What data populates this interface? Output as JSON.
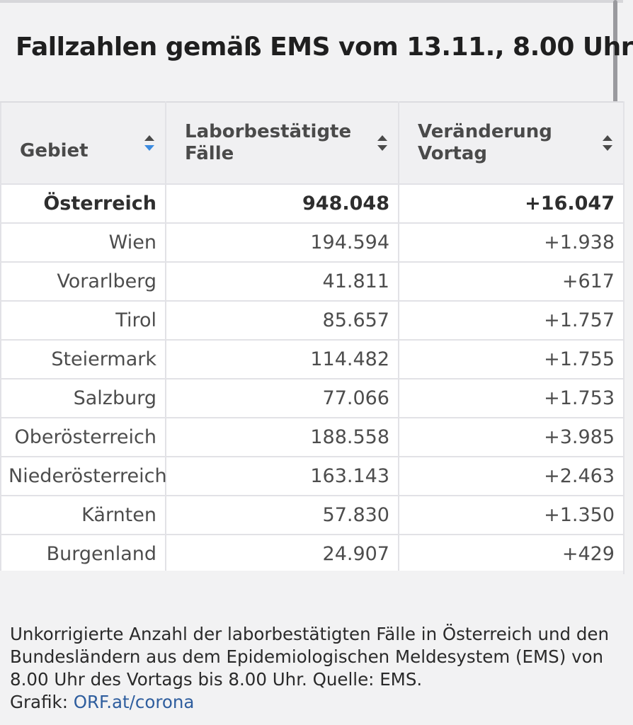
{
  "title": "Fallzahlen gemäß EMS vom 13.11., 8.00 Uhr",
  "table": {
    "headers": {
      "gebiet": "Gebiet",
      "faelle": "Laborbestätigte Fälle",
      "veraenderung": "Veränderung Vortag"
    },
    "sort": {
      "gebiet": "sort-ascending-active",
      "faelle": "sort-neutral",
      "veraenderung": "sort-neutral"
    },
    "rows": [
      {
        "gebiet": "Österreich",
        "faelle": "948.048",
        "veraenderung": "+16.047"
      },
      {
        "gebiet": "Wien",
        "faelle": "194.594",
        "veraenderung": "+1.938"
      },
      {
        "gebiet": "Vorarlberg",
        "faelle": "41.811",
        "veraenderung": "+617"
      },
      {
        "gebiet": "Tirol",
        "faelle": "85.657",
        "veraenderung": "+1.757"
      },
      {
        "gebiet": "Steiermark",
        "faelle": "114.482",
        "veraenderung": "+1.755"
      },
      {
        "gebiet": "Salzburg",
        "faelle": "77.066",
        "veraenderung": "+1.753"
      },
      {
        "gebiet": "Oberösterreich",
        "faelle": "188.558",
        "veraenderung": "+3.985"
      },
      {
        "gebiet": "Niederösterreich",
        "faelle": "163.143",
        "veraenderung": "+2.463"
      },
      {
        "gebiet": "Kärnten",
        "faelle": "57.830",
        "veraenderung": "+1.350"
      },
      {
        "gebiet": "Burgenland",
        "faelle": "24.907",
        "veraenderung": "+429"
      }
    ]
  },
  "footnote": {
    "text": "Unkorrigierte Anzahl der laborbestätigten Fälle in Österreich und den Bundesländern aus dem Epidemiologischen Meldesystem (EMS) von 8.00 Uhr des Vortags bis 8.00 Uhr. Quelle: EMS.",
    "grafik_label": "Grafik:",
    "link_text": "ORF.at/corona"
  },
  "colors": {
    "sort_active": "#3b8be0",
    "sort_inactive": "#4a4a4a",
    "link": "#2f5e9e"
  }
}
